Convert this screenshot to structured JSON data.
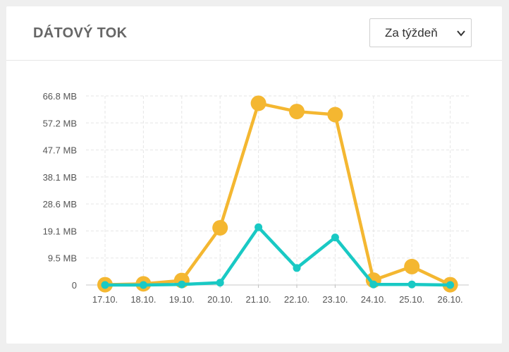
{
  "header": {
    "title": "DÁTOVÝ TOK",
    "period_select": {
      "selected": "Za týždeň"
    }
  },
  "colors": {
    "series_orange": "#f4b731",
    "series_teal": "#19c9c4",
    "grid": "#e5e5e5",
    "axis_text": "#555555"
  },
  "chart_data": {
    "type": "line",
    "title": "",
    "xlabel": "",
    "ylabel": "",
    "categories": [
      "17.10.",
      "18.10.",
      "19.10.",
      "20.10.",
      "21.10.",
      "22.10.",
      "23.10.",
      "24.10.",
      "25.10.",
      "26.10."
    ],
    "y_ticks": [
      "0",
      "9.5 MB",
      "19.1 MB",
      "28.6 MB",
      "38.1 MB",
      "47.7 MB",
      "57.2 MB",
      "66.8 MB"
    ],
    "ylim": [
      0,
      66.8
    ],
    "y_unit": "MB",
    "grid": true,
    "series": [
      {
        "color": "#f4b731",
        "values": [
          0.1,
          0.4,
          1.6,
          20.2,
          64.2,
          61.3,
          60.2,
          1.7,
          6.5,
          0.1
        ]
      },
      {
        "color": "#19c9c4",
        "values": [
          0.0,
          0.0,
          0.2,
          0.8,
          20.4,
          6.0,
          16.8,
          0.2,
          0.2,
          0.0
        ]
      }
    ]
  }
}
